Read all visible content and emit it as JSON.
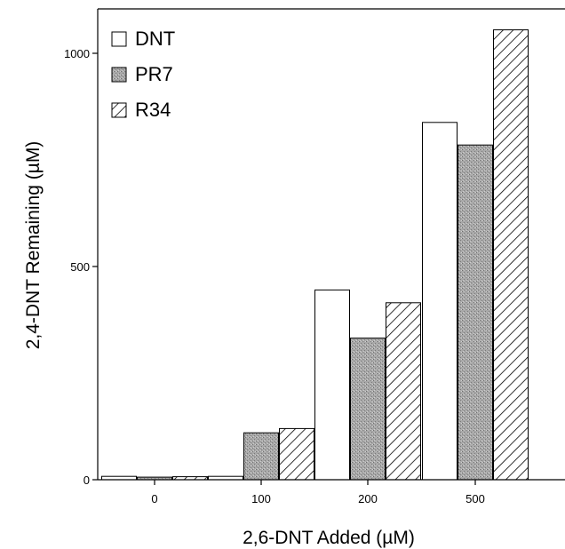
{
  "chart_data": {
    "type": "bar",
    "xlabel": "2,6-DNT Added (µM)",
    "ylabel": "2,4-DNT Remaining (µM)",
    "categories": [
      "0",
      "100",
      "200",
      "500"
    ],
    "series": [
      {
        "name": "DNT",
        "values": [
          8,
          8,
          445,
          838
        ],
        "fill": "white"
      },
      {
        "name": "PR7",
        "values": [
          6,
          110,
          332,
          785
        ],
        "fill": "gray-stipple"
      },
      {
        "name": "R34",
        "values": [
          7,
          120,
          415,
          1055
        ],
        "fill": "diagonal-hatch"
      }
    ],
    "yticks": [
      0,
      500,
      1000
    ],
    "ylim": [
      0,
      1100
    ],
    "grid": false,
    "legend_position": "top-left"
  }
}
